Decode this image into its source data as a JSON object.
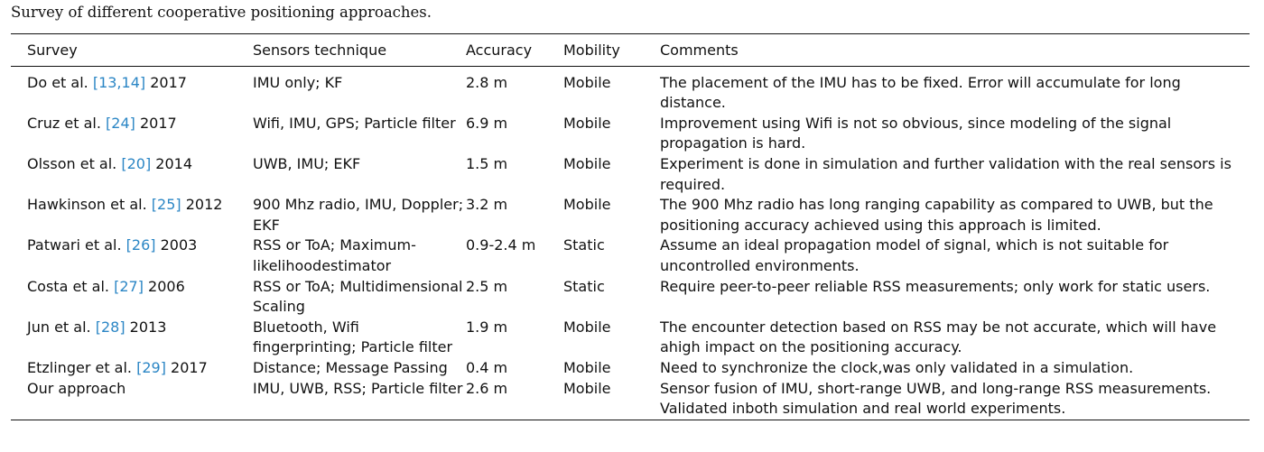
{
  "caption": "Survey of different cooperative positioning approaches.",
  "headers": [
    "Survey",
    "Sensors technique",
    "Accuracy",
    "Mobility",
    "Comments"
  ],
  "rows": [
    {
      "author": "Do et al.",
      "cite": "[13,14]",
      "year": "2017",
      "sensors": "IMU only; KF",
      "accuracy": "2.8 m",
      "mobility": "Mobile",
      "comments": "The placement of the IMU has to be fixed. Error will accumulate for long distance."
    },
    {
      "author": "Cruz et al.",
      "cite": "[24]",
      "year": "2017",
      "sensors": "Wifi, IMU, GPS; Particle filter",
      "accuracy": "6.9 m",
      "mobility": "Mobile",
      "comments": "Improvement using Wifi is not so obvious, since modeling of the signal propagation is hard."
    },
    {
      "author": "Olsson et al.",
      "cite": "[20]",
      "year": "2014",
      "sensors": "UWB, IMU; EKF",
      "accuracy": "1.5 m",
      "mobility": "Mobile",
      "comments": "Experiment is done in simulation and further validation with the real sensors is required."
    },
    {
      "author": "Hawkinson et al.",
      "cite": "[25]",
      "year": "2012",
      "sensors": "900 Mhz radio, IMU, Doppler; EKF",
      "accuracy": "3.2 m",
      "mobility": "Mobile",
      "comments": "The 900 Mhz radio has long ranging capability as compared to UWB, but the positioning accuracy achieved using this approach is limited."
    },
    {
      "author": "Patwari et al.",
      "cite": "[26]",
      "year": "2003",
      "sensors": "RSS or ToA; Maximum-likelihoodestimator",
      "accuracy": "0.9-2.4 m",
      "mobility": "Static",
      "comments": "Assume an ideal propagation model of signal, which is not suitable for uncontrolled environments."
    },
    {
      "author": "Costa et al.",
      "cite": "[27]",
      "year": "2006",
      "sensors": "RSS or ToA; Multidimensional Scaling",
      "accuracy": "2.5 m",
      "mobility": "Static",
      "comments": "Require peer-to-peer reliable RSS measurements; only work for static users."
    },
    {
      "author": "Jun et al.",
      "cite": "[28]",
      "year": "2013",
      "sensors": "Bluetooth, Wifi fingerprinting; Particle filter",
      "accuracy": "1.9 m",
      "mobility": "Mobile",
      "comments": "The encounter detection based on RSS may be not accurate, which will have ahigh impact on the positioning accuracy."
    },
    {
      "author": "Etzlinger et al.",
      "cite": "[29]",
      "year": "2017",
      "sensors": "Distance; Message Passing",
      "accuracy": "0.4 m",
      "mobility": "Mobile",
      "comments": "Need to synchronize the clock,was only validated in a simulation."
    },
    {
      "author": "Our approach",
      "cite": "",
      "year": "",
      "sensors": "IMU, UWB, RSS; Particle filter",
      "accuracy": "2.6 m",
      "mobility": "Mobile",
      "comments": "Sensor fusion of IMU, short-range UWB, and long-range RSS measurements. Validated inboth simulation and real world experiments."
    }
  ]
}
